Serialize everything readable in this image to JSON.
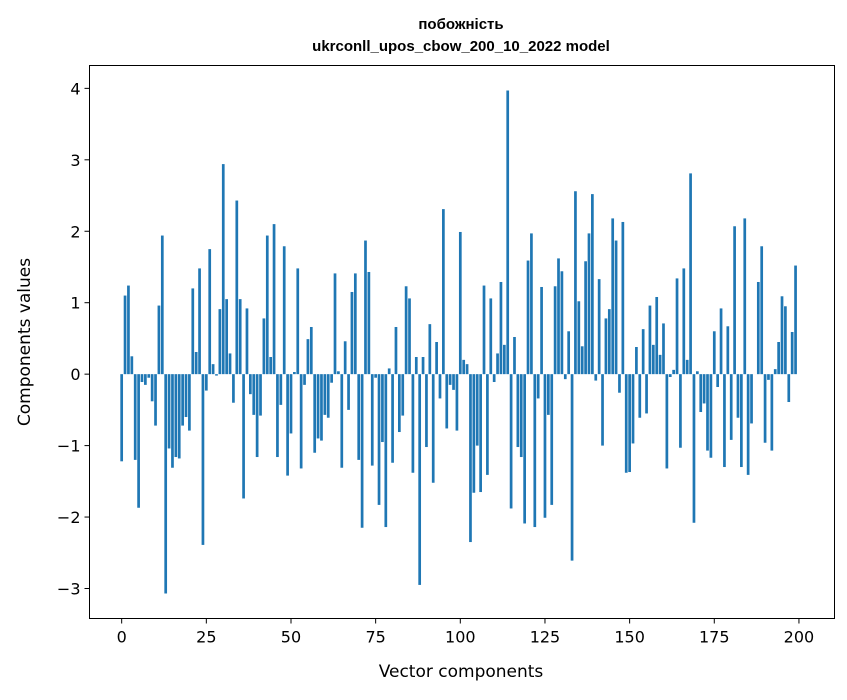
{
  "chart_data": {
    "type": "bar",
    "title": "побожність",
    "subtitle": "ukrconll_upos_cbow_200_10_2022 model",
    "xlabel": "Vector components",
    "ylabel": "Components values",
    "xlim": [
      -9.5,
      210.5
    ],
    "ylim": [
      -3.42,
      4.32
    ],
    "xticks": [
      "0",
      "25",
      "50",
      "75",
      "100",
      "125",
      "150",
      "175",
      "200"
    ],
    "yticks": [
      "−3",
      "−2",
      "−1",
      "0",
      "1",
      "2",
      "3",
      "4"
    ],
    "grid": false,
    "color": "#1f77b4",
    "values": [
      -1.22,
      1.1,
      1.24,
      0.25,
      -1.2,
      -1.87,
      -0.11,
      -0.15,
      -0.05,
      -0.38,
      -0.72,
      0.96,
      1.94,
      -3.07,
      -1.04,
      -1.31,
      -1.16,
      -1.18,
      -0.72,
      -0.6,
      -0.79,
      1.2,
      0.31,
      1.48,
      -2.39,
      -0.23,
      1.75,
      0.14,
      -0.02,
      0.91,
      2.94,
      1.05,
      0.29,
      -0.4,
      2.43,
      1.05,
      -1.74,
      0.92,
      -0.28,
      -0.57,
      -1.16,
      -0.58,
      0.78,
      1.94,
      0.24,
      2.1,
      -1.16,
      -0.43,
      1.79,
      -1.42,
      -0.83,
      0.03,
      1.48,
      -1.32,
      -0.15,
      0.49,
      0.66,
      -1.1,
      -0.9,
      -0.93,
      -0.57,
      -0.61,
      -0.12,
      1.41,
      0.04,
      -1.31,
      0.46,
      -0.5,
      1.15,
      1.41,
      -1.2,
      -2.15,
      1.87,
      1.43,
      -1.28,
      -0.05,
      -1.83,
      -0.95,
      -2.14,
      0.08,
      -1.24,
      0.66,
      -0.81,
      -0.58,
      1.23,
      1.06,
      -1.38,
      0.24,
      -2.95,
      0.24,
      -1.02,
      0.7,
      -1.52,
      0.45,
      -0.34,
      2.31,
      -0.76,
      -0.15,
      -0.22,
      -0.79,
      1.99,
      0.2,
      0.14,
      -2.35,
      -1.66,
      -1.0,
      -1.65,
      1.24,
      -1.41,
      1.06,
      -0.11,
      0.29,
      1.29,
      0.41,
      3.97,
      -1.88,
      0.52,
      -1.02,
      -1.16,
      -2.09,
      1.59,
      1.97,
      -2.14,
      -0.34,
      1.22,
      -2.01,
      -0.57,
      -1.83,
      1.23,
      1.62,
      1.44,
      -0.07,
      0.6,
      -2.61,
      2.56,
      1.02,
      0.39,
      1.58,
      1.97,
      2.52,
      -0.09,
      1.33,
      -1.0,
      0.78,
      0.91,
      2.18,
      1.87,
      -0.26,
      2.13,
      -1.38,
      -1.37,
      -0.97,
      0.38,
      -0.61,
      0.63,
      -0.55,
      0.96,
      0.41,
      1.08,
      0.27,
      0.71,
      -1.32,
      -0.04,
      0.06,
      1.34,
      -1.03,
      1.48,
      0.2,
      2.81,
      -2.08,
      0.04,
      -0.53,
      -0.41,
      -1.07,
      -1.17,
      0.6,
      -0.18,
      0.92,
      -1.3,
      0.67,
      -0.92,
      2.07,
      -0.61,
      -1.3,
      2.18,
      -1.41,
      -0.69,
      0.0,
      1.29,
      1.79,
      -0.96,
      -0.08,
      -1.07,
      0.07,
      0.45,
      1.09,
      0.95,
      -0.39,
      0.59,
      1.52
    ]
  }
}
